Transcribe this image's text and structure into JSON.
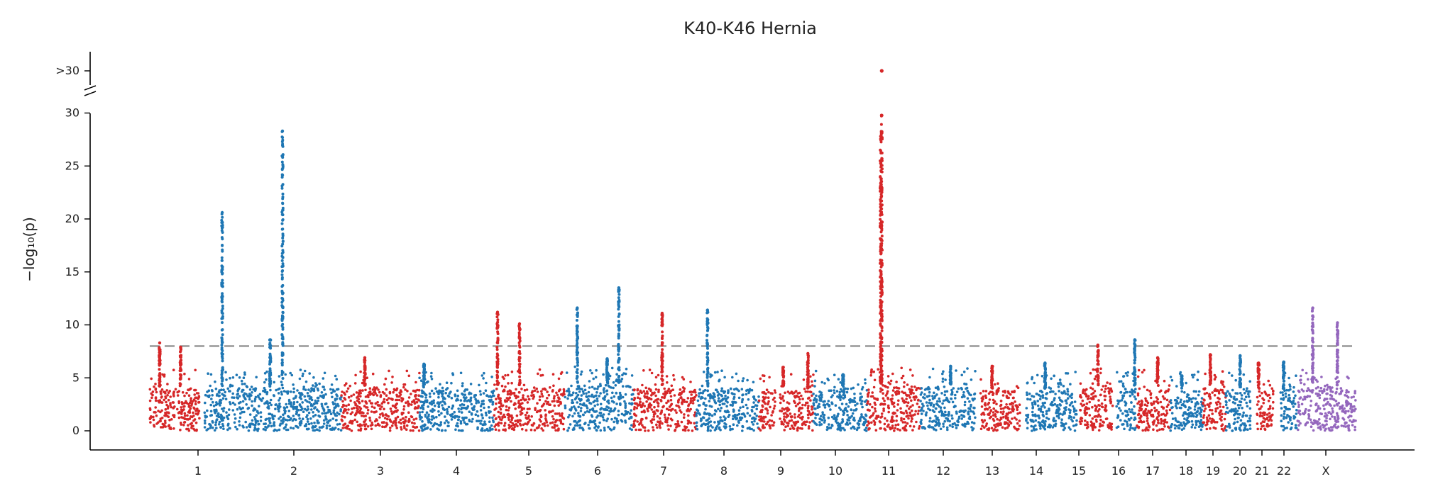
{
  "chart_data": {
    "type": "scatter",
    "subtype": "manhattan",
    "title": "K40-K46 Hernia",
    "xlabel": "",
    "ylabel": "−log₁₀(p)",
    "ylim": [
      0,
      31
    ],
    "yticks": [
      "0",
      "5",
      "10",
      "15",
      "20",
      "25",
      "30"
    ],
    "y_break_label": ">30",
    "y_break_value_capped": 30,
    "significance_threshold": 8,
    "threshold_line_style": "dashed gray",
    "colors": {
      "odd": "#d62728",
      "even": "#1f77b4",
      "X": "#9467bd",
      "threshold": "#7f7f7f"
    },
    "chromosomes": [
      {
        "label": "1",
        "baseline_max": 4.2,
        "peaks": [
          {
            "pos": 0.2,
            "y": 8.3
          },
          {
            "pos": 0.62,
            "y": 7.9
          }
        ]
      },
      {
        "label": "2",
        "baseline_max": 4.2,
        "peaks": [
          {
            "pos": 0.13,
            "y": 20.6
          },
          {
            "pos": 0.57,
            "y": 28.3
          },
          {
            "pos": 0.48,
            "y": 8.6
          }
        ]
      },
      {
        "label": "3",
        "baseline_max": 4.2,
        "peaks": [
          {
            "pos": 0.3,
            "y": 6.9
          }
        ]
      },
      {
        "label": "4",
        "baseline_max": 4.0,
        "peaks": [
          {
            "pos": 0.06,
            "y": 6.3
          }
        ]
      },
      {
        "label": "5",
        "baseline_max": 4.2,
        "peaks": [
          {
            "pos": 0.05,
            "y": 11.2
          },
          {
            "pos": 0.36,
            "y": 10.1
          }
        ]
      },
      {
        "label": "6",
        "baseline_max": 4.5,
        "peaks": [
          {
            "pos": 0.18,
            "y": 11.6
          },
          {
            "pos": 0.79,
            "y": 13.5
          },
          {
            "pos": 0.62,
            "y": 6.8
          }
        ]
      },
      {
        "label": "7",
        "baseline_max": 4.2,
        "peaks": [
          {
            "pos": 0.46,
            "y": 11.1
          }
        ]
      },
      {
        "label": "8",
        "baseline_max": 4.2,
        "peaks": [
          {
            "pos": 0.18,
            "y": 11.4
          }
        ]
      },
      {
        "label": "9",
        "baseline_max": 4.0,
        "peaks": [
          {
            "pos": 0.45,
            "y": 6.0
          },
          {
            "pos": 0.9,
            "y": 7.3
          }
        ]
      },
      {
        "label": "10",
        "baseline_max": 4.2,
        "peaks": [
          {
            "pos": 0.55,
            "y": 5.3
          }
        ]
      },
      {
        "label": "11",
        "baseline_max": 4.4,
        "peaks": [
          {
            "pos": 0.27,
            "y": 30
          },
          {
            "pos": 0.25,
            "y": 27.8
          }
        ]
      },
      {
        "label": "12",
        "baseline_max": 4.3,
        "peaks": [
          {
            "pos": 0.55,
            "y": 6.1
          }
        ]
      },
      {
        "label": "13",
        "baseline_max": 4.0,
        "peaks": [
          {
            "pos": 0.3,
            "y": 6.1
          }
        ]
      },
      {
        "label": "14",
        "baseline_max": 4.0,
        "peaks": [
          {
            "pos": 0.38,
            "y": 6.4
          }
        ]
      },
      {
        "label": "15",
        "baseline_max": 4.3,
        "peaks": [
          {
            "pos": 0.55,
            "y": 8.1
          }
        ]
      },
      {
        "label": "16",
        "baseline_max": 4.2,
        "peaks": [
          {
            "pos": 0.92,
            "y": 8.6
          }
        ]
      },
      {
        "label": "17",
        "baseline_max": 4.2,
        "peaks": [
          {
            "pos": 0.62,
            "y": 6.9
          }
        ]
      },
      {
        "label": "18",
        "baseline_max": 4.0,
        "peaks": [
          {
            "pos": 0.35,
            "y": 5.2
          }
        ]
      },
      {
        "label": "19",
        "baseline_max": 4.2,
        "peaks": [
          {
            "pos": 0.32,
            "y": 7.2
          }
        ]
      },
      {
        "label": "20",
        "baseline_max": 4.0,
        "peaks": [
          {
            "pos": 0.58,
            "y": 7.1
          }
        ]
      },
      {
        "label": "21",
        "baseline_max": 4.0,
        "peaks": [
          {
            "pos": 0.1,
            "y": 6.4
          }
        ]
      },
      {
        "label": "22",
        "baseline_max": 4.0,
        "peaks": [
          {
            "pos": 0.2,
            "y": 6.5
          }
        ]
      },
      {
        "label": "X",
        "baseline_max": 4.3,
        "peaks": [
          {
            "pos": 0.26,
            "y": 11.6
          },
          {
            "pos": 0.68,
            "y": 10.2
          }
        ]
      }
    ]
  }
}
